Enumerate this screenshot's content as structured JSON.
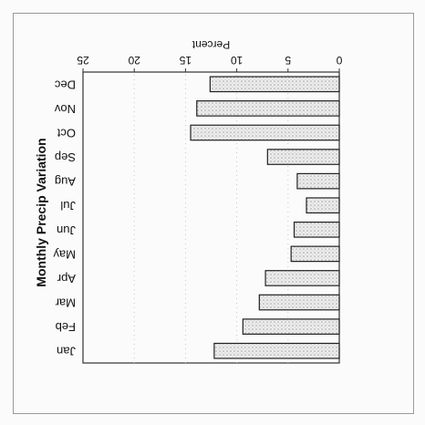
{
  "chart_data": {
    "type": "bar",
    "orientation": "horizontal",
    "title": "Monthly Precip Variation",
    "xlabel": "Percent",
    "ylabel": "",
    "categories": [
      "Jan",
      "Feb",
      "Mar",
      "Apr",
      "May",
      "Jun",
      "Jul",
      "Aug",
      "Sep",
      "Oct",
      "Nov",
      "Dec"
    ],
    "series": [
      {
        "values": [
          12.2,
          9.4,
          7.8,
          7.2,
          4.7,
          4.4,
          3.2,
          4.1,
          7.0,
          14.5,
          13.9,
          12.6
        ]
      }
    ],
    "xlim": [
      0,
      25
    ],
    "xticks": [
      0,
      5,
      10,
      15,
      20,
      25
    ],
    "grid": true,
    "colors": {
      "bar_fill": "#e6e6e6",
      "bar_stroke": "#222222"
    }
  }
}
